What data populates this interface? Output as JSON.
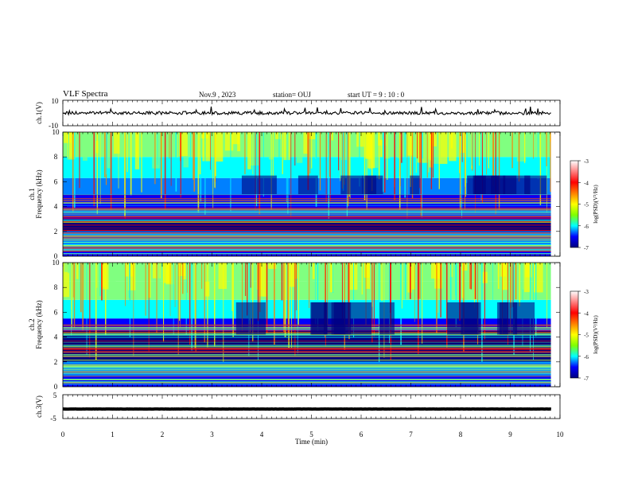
{
  "header": {
    "title": "VLF Spectra",
    "date": "Nov.9 , 2023",
    "station": "station= OUJ",
    "start": "start UT = 9 : 10 : 0"
  },
  "chart_data": [
    {
      "type": "line",
      "name": "ch1-waveform",
      "ylabel": "ch.1(V)",
      "ylim": [
        -10,
        10
      ],
      "y_tick_labels": [
        "10",
        "-10"
      ],
      "xlim": [
        0,
        10
      ],
      "baseline": 0,
      "trace_end_min": 9.82
    },
    {
      "type": "heatmap",
      "name": "ch1-spectrogram",
      "ylabel": "ch.1\nFrequency (kHz)",
      "ylim": [
        0,
        10
      ],
      "y_tick_labels": [
        "0",
        "2",
        "4",
        "6",
        "8",
        "10"
      ],
      "xlim": [
        0,
        10
      ],
      "data_end_min": 9.82,
      "colorbar": {
        "label": "log(PSD)(V²/Hz)",
        "range": [
          -7,
          -3
        ],
        "tick_labels": [
          "-3",
          "-4",
          "-5",
          "-6",
          "-7"
        ]
      }
    },
    {
      "type": "heatmap",
      "name": "ch2-spectrogram",
      "ylabel": "ch.2\nFrequency (kHz)",
      "ylim": [
        0,
        10
      ],
      "y_tick_labels": [
        "0",
        "2",
        "4",
        "6",
        "8",
        "10"
      ],
      "xlim": [
        0,
        10
      ],
      "data_end_min": 9.82,
      "colorbar": {
        "label": "log(PSD)(V²/Hz)",
        "range": [
          -7,
          -3
        ],
        "tick_labels": [
          "-3",
          "-4",
          "-5",
          "-6",
          "-7"
        ]
      }
    },
    {
      "type": "line",
      "name": "ch3-waveform",
      "ylabel": "ch.3(V)",
      "ylim": [
        -5,
        5
      ],
      "y_tick_labels": [
        "5",
        "-5"
      ],
      "xlim": [
        0,
        10
      ],
      "baseline": -1,
      "trace_end_min": 9.82,
      "xlabel": "Time (min)",
      "x_tick_labels": [
        "0",
        "1",
        "2",
        "3",
        "4",
        "5",
        "6",
        "7",
        "8",
        "9",
        "10"
      ]
    }
  ],
  "colors": {
    "trace": "#000000",
    "colormap": [
      "#00007f",
      "#0000ff",
      "#0080ff",
      "#00ffff",
      "#80ff80",
      "#ffff00",
      "#ff8000",
      "#ff0000",
      "#7f0000"
    ]
  }
}
